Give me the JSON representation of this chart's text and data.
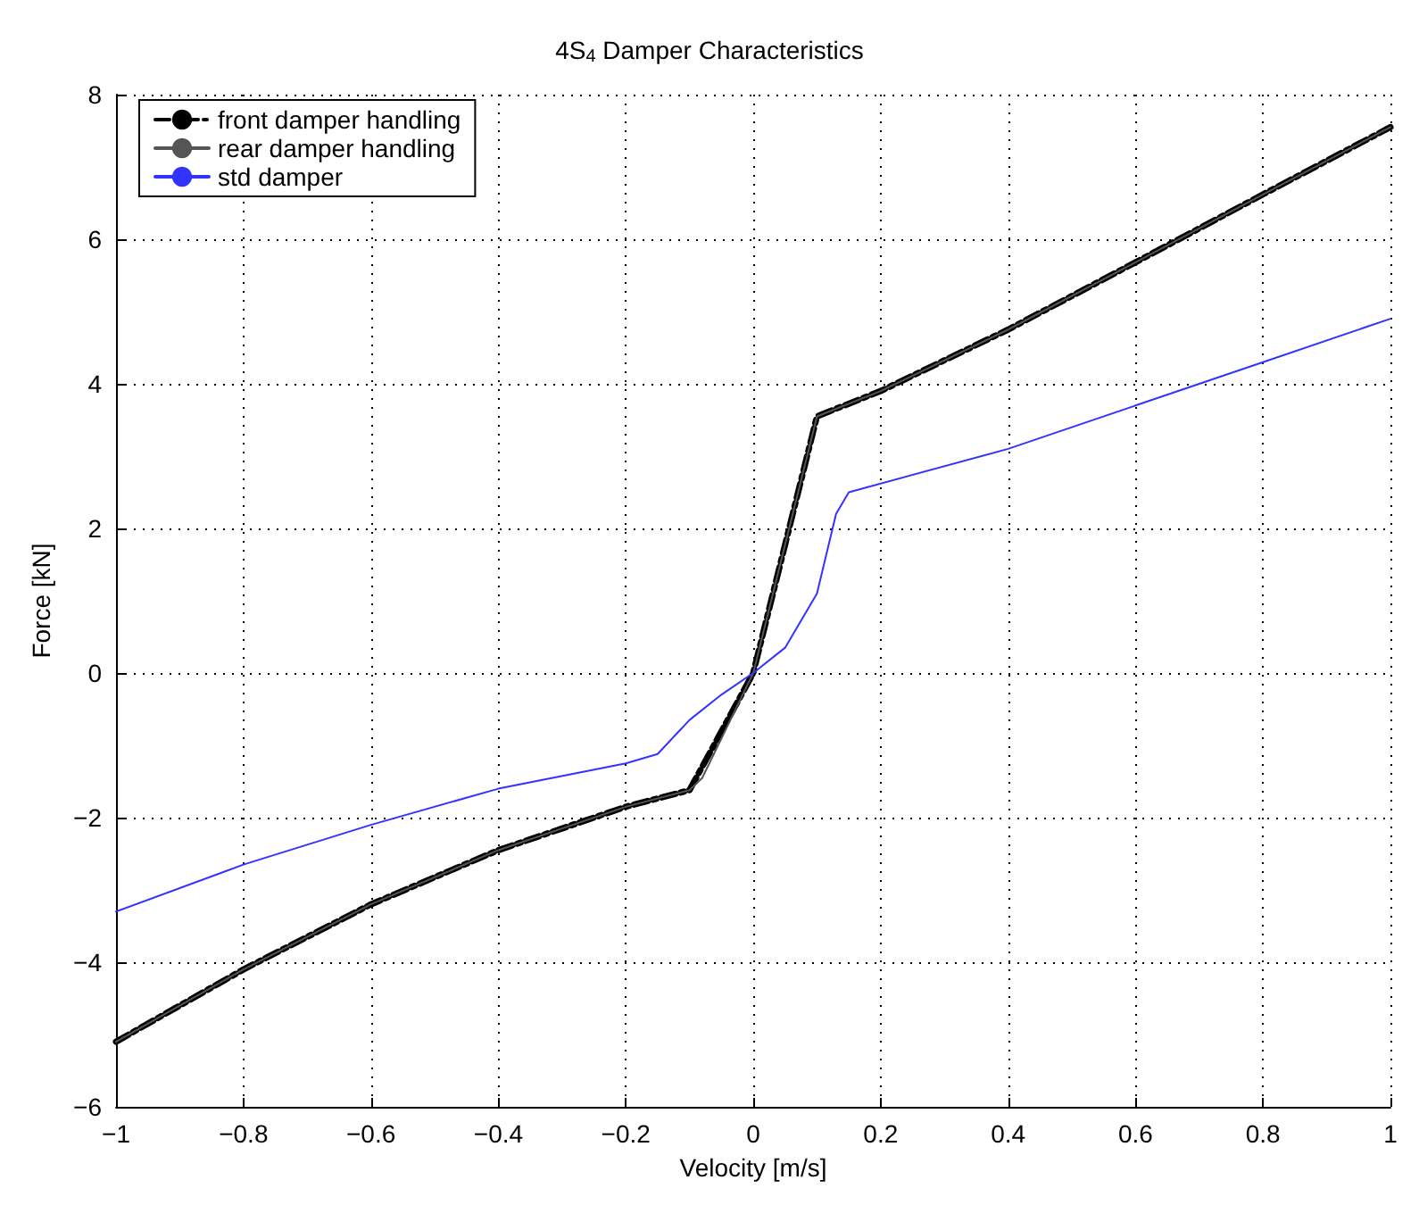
{
  "chart_data": {
    "type": "line",
    "title": "4S$_{4}$ Damper Characteristics",
    "xlabel": "Velocity [m/s]",
    "ylabel": "Force [kN]",
    "xlim": [
      -1,
      1
    ],
    "xticks": [
      -1,
      -0.8,
      -0.6,
      -0.4,
      -0.2,
      0,
      0.2,
      0.4,
      0.6,
      0.8,
      1
    ],
    "ylim": [
      -6,
      8
    ],
    "yticks": [
      -6,
      -4,
      -2,
      0,
      2,
      4,
      6,
      8
    ],
    "grid": true,
    "legend": "top left",
    "marker": "none",
    "series": [
      {
        "name": "front damper handling",
        "color": "#000000",
        "line_style": "dashed",
        "x": [
          -1,
          -0.8,
          -0.6,
          -0.4,
          -0.2,
          -0.1,
          0,
          0.1,
          0.2,
          0.4,
          0.6,
          0.8,
          1
        ],
        "values": [
          -5.1,
          -4.1,
          -3.2,
          -2.45,
          -1.85,
          -1.62,
          0,
          3.55,
          3.9,
          4.75,
          5.68,
          6.62,
          7.55
        ]
      },
      {
        "name": "rear damper handling",
        "color": "#555555",
        "line_style": "solid",
        "x": [
          -1,
          -0.8,
          -0.6,
          -0.4,
          -0.2,
          -0.1,
          -0.08,
          0,
          0.1,
          0.2,
          0.4,
          0.6,
          0.8,
          1
        ],
        "values": [
          -5.1,
          -4.1,
          -3.2,
          -2.45,
          -1.85,
          -1.62,
          -1.45,
          0,
          3.55,
          3.9,
          4.75,
          5.68,
          6.62,
          7.55
        ]
      },
      {
        "name": "std damper",
        "color": "#3333ff",
        "line_style": "solid",
        "x": [
          -1,
          -0.8,
          -0.6,
          -0.4,
          -0.2,
          -0.15,
          -0.1,
          -0.05,
          0,
          0.05,
          0.1,
          0.13,
          0.15,
          0.4,
          0.6,
          0.8,
          1
        ],
        "values": [
          -3.3,
          -2.65,
          -2.1,
          -1.6,
          -1.25,
          -1.12,
          -0.65,
          -0.3,
          0,
          0.35,
          1.1,
          2.2,
          2.5,
          3.1,
          3.7,
          4.3,
          4.9
        ]
      }
    ]
  }
}
